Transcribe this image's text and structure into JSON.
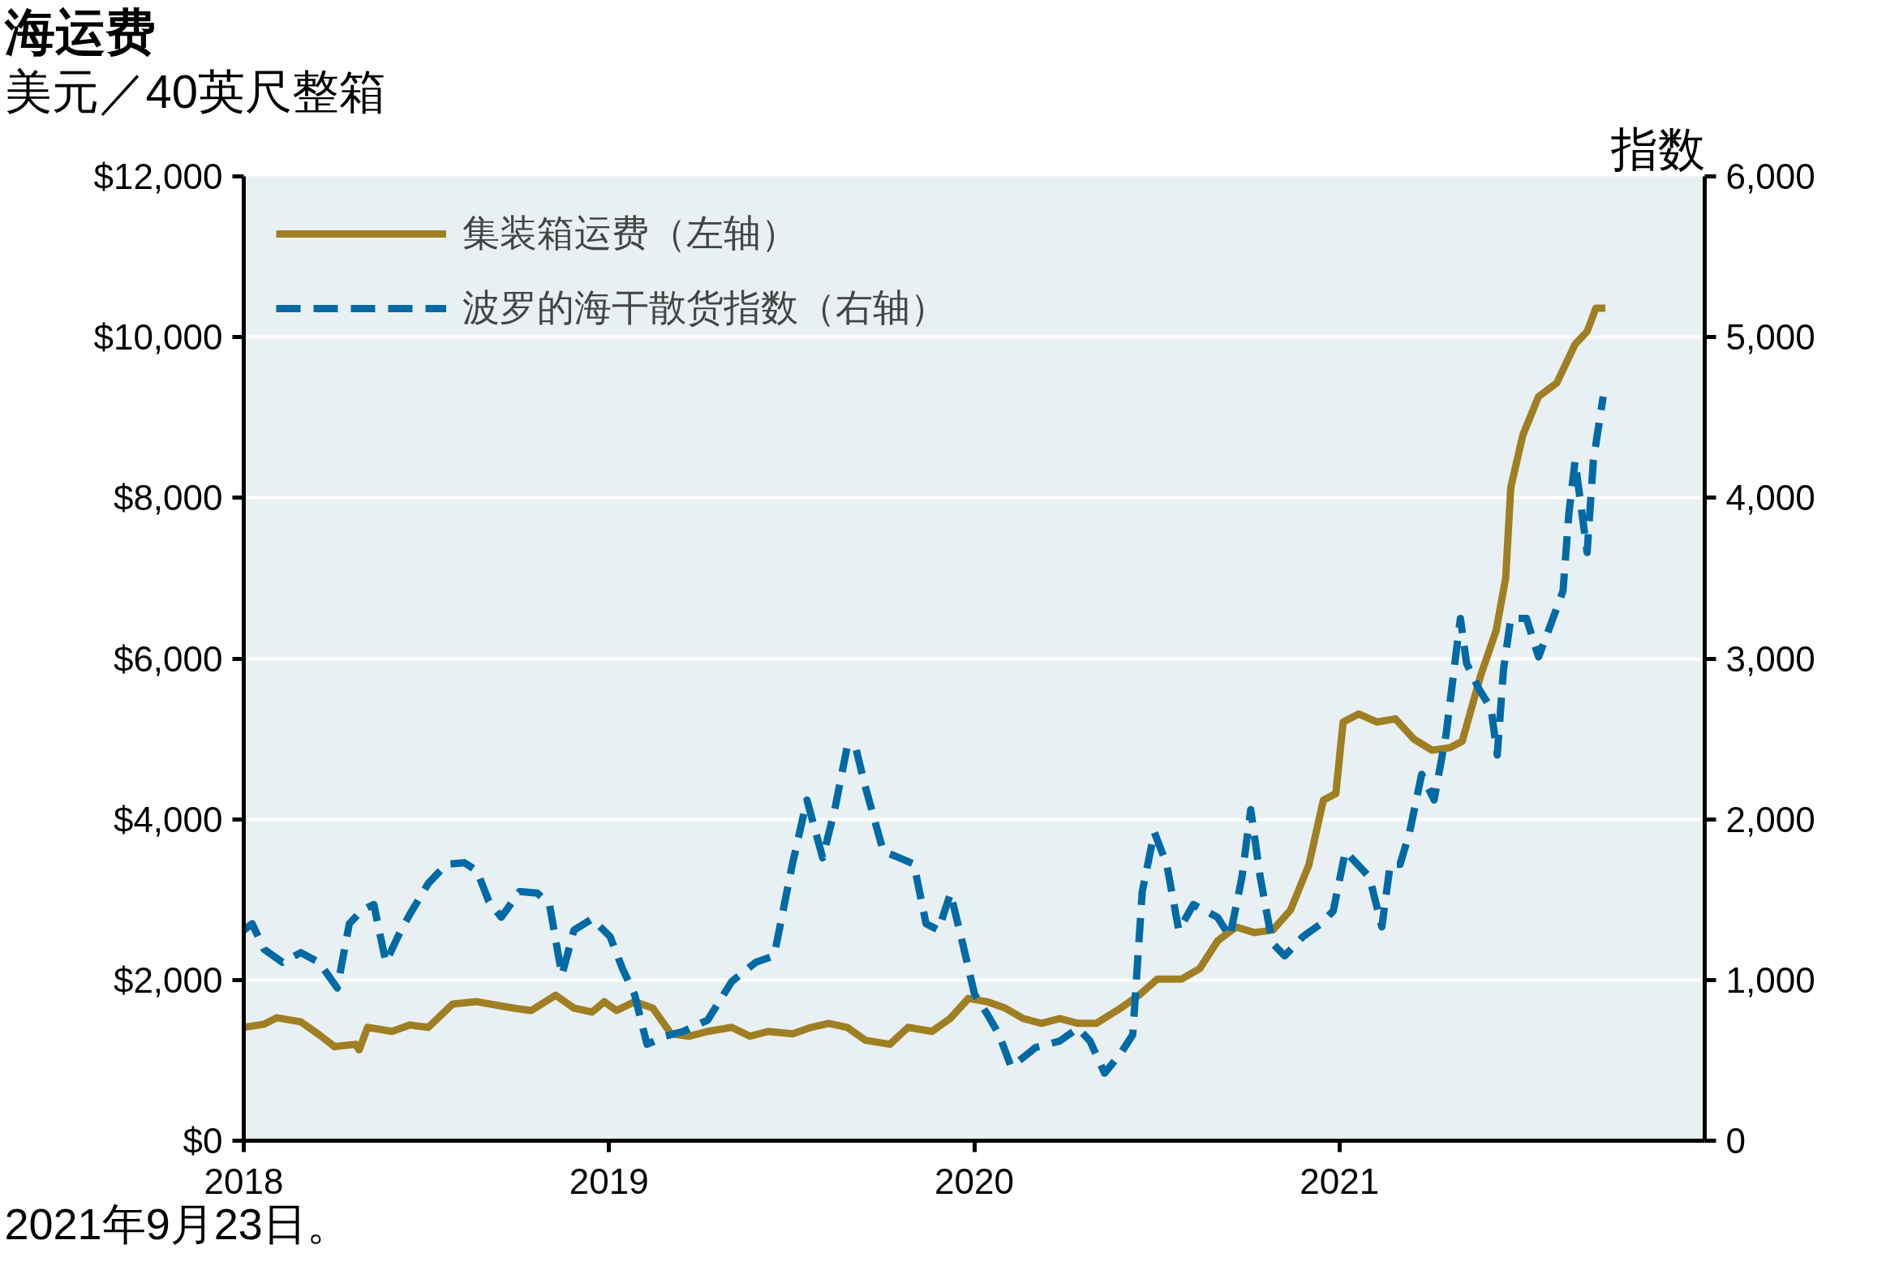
{
  "chart_data": {
    "type": "line",
    "title": "海运费",
    "ylabel": "美元／40英尺整箱",
    "y2label": "指数",
    "annotations": [
      "2021年9月23日。"
    ],
    "xlim": [
      2018,
      2022
    ],
    "xticks": [
      2018,
      2019,
      2020,
      2021
    ],
    "ylim": [
      0,
      12000
    ],
    "yticks": [
      {
        "value": 0,
        "label": "$0"
      },
      {
        "value": 2000,
        "label": "$2,000"
      },
      {
        "value": 4000,
        "label": "$4,000"
      },
      {
        "value": 6000,
        "label": "$6,000"
      },
      {
        "value": 8000,
        "label": "$8,000"
      },
      {
        "value": 10000,
        "label": "$10,000"
      },
      {
        "value": 12000,
        "label": "$12,000"
      }
    ],
    "y2lim": [
      0,
      6000
    ],
    "y2ticks": [
      0,
      {
        "value": 1000,
        "label": "1,000"
      },
      {
        "value": 2000,
        "label": "2,000"
      },
      {
        "value": 3000,
        "label": "3,000"
      },
      {
        "value": 4000,
        "label": "4,000"
      },
      {
        "value": 5000,
        "label": "5,000"
      },
      {
        "value": 6000,
        "label": "6,000"
      }
    ],
    "grid": "y",
    "legend": "top left",
    "series": [
      {
        "name": "集装箱运费（左轴）",
        "color": "#a07f22",
        "line_style": "solid",
        "x": [
          2018.0,
          2018.056,
          2018.09,
          2018.156,
          2018.206,
          2018.249,
          2018.306,
          2018.316,
          2018.339,
          2018.406,
          2018.455,
          2018.505,
          2018.572,
          2018.638,
          2018.738,
          2018.787,
          2018.854,
          2018.904,
          2018.954,
          2018.987,
          2019.02,
          2019.07,
          2019.12,
          2019.17,
          2019.22,
          2019.27,
          2019.336,
          2019.386,
          2019.436,
          2019.503,
          2019.553,
          2019.602,
          2019.652,
          2019.702,
          2019.769,
          2019.819,
          2019.884,
          2019.934,
          2019.984,
          2020.035,
          2020.085,
          2020.134,
          2020.184,
          2020.234,
          2020.284,
          2020.334,
          2020.401,
          2020.451,
          2020.501,
          2020.567,
          2020.617,
          2020.667,
          2020.717,
          2020.767,
          2020.817,
          2020.866,
          2020.916,
          2020.956,
          2020.99,
          2021.01,
          2021.053,
          2021.103,
          2021.153,
          2021.203,
          2021.253,
          2021.302,
          2021.336,
          2021.386,
          2021.429,
          2021.455,
          2021.469,
          2021.502,
          2021.545,
          2021.595,
          2021.645,
          2021.678,
          2021.702,
          2021.728
        ],
        "values": [
          1410,
          1450,
          1530,
          1480,
          1320,
          1170,
          1200,
          1130,
          1410,
          1360,
          1440,
          1410,
          1700,
          1730,
          1650,
          1620,
          1810,
          1650,
          1600,
          1730,
          1620,
          1730,
          1650,
          1330,
          1300,
          1360,
          1410,
          1300,
          1360,
          1330,
          1410,
          1460,
          1410,
          1250,
          1200,
          1410,
          1360,
          1520,
          1770,
          1730,
          1650,
          1520,
          1460,
          1520,
          1460,
          1460,
          1650,
          1810,
          2010,
          2010,
          2140,
          2490,
          2660,
          2590,
          2620,
          2870,
          3430,
          4240,
          4320,
          5210,
          5310,
          5210,
          5250,
          5000,
          4860,
          4890,
          4970,
          5780,
          6350,
          7000,
          8130,
          8780,
          9260,
          9430,
          9910,
          10070,
          10360,
          10360
        ]
      },
      {
        "name": "波罗的海干散货指数（右轴）",
        "color": "#006aa6",
        "line_style": "dashed",
        "axis": "y2",
        "x": [
          2018.0,
          2018.023,
          2018.056,
          2018.106,
          2018.156,
          2018.206,
          2018.256,
          2018.289,
          2018.322,
          2018.356,
          2018.389,
          2018.422,
          2018.455,
          2018.505,
          2018.555,
          2018.604,
          2018.638,
          2018.671,
          2018.705,
          2018.755,
          2018.804,
          2018.837,
          2018.871,
          2018.904,
          2018.954,
          2019.003,
          2019.037,
          2019.07,
          2019.104,
          2019.154,
          2019.203,
          2019.27,
          2019.336,
          2019.402,
          2019.452,
          2019.502,
          2019.542,
          2019.585,
          2019.618,
          2019.652,
          2019.675,
          2019.702,
          2019.751,
          2019.785,
          2019.835,
          2019.868,
          2019.902,
          2019.935,
          2019.968,
          2020.001,
          2020.035,
          2020.068,
          2020.101,
          2020.135,
          2020.168,
          2020.234,
          2020.284,
          2020.317,
          2020.357,
          2020.4,
          2020.434,
          2020.46,
          2020.493,
          2020.527,
          2020.56,
          2020.6,
          2020.633,
          2020.666,
          2020.7,
          2020.733,
          2020.757,
          2020.783,
          2020.816,
          2020.85,
          2020.9,
          2020.949,
          2020.983,
          2021.016,
          2021.049,
          2021.082,
          2021.116,
          2021.139,
          2021.166,
          2021.192,
          2021.225,
          2021.259,
          2021.292,
          2021.331,
          2021.348,
          2021.382,
          2021.415,
          2021.432,
          2021.449,
          2021.469,
          2021.512,
          2021.545,
          2021.578,
          2021.612,
          2021.628,
          2021.645,
          2021.678,
          2021.695,
          2021.722
        ],
        "values": [
          1310,
          1350,
          1190,
          1110,
          1170,
          1110,
          950,
          1350,
          1430,
          1470,
          1110,
          1270,
          1410,
          1600,
          1720,
          1730,
          1680,
          1490,
          1390,
          1550,
          1540,
          1470,
          1030,
          1310,
          1380,
          1270,
          1070,
          910,
          600,
          650,
          680,
          750,
          990,
          1110,
          1150,
          1720,
          2120,
          1760,
          2060,
          2450,
          2450,
          2200,
          1800,
          1770,
          1720,
          1350,
          1310,
          1540,
          1230,
          910,
          790,
          660,
          460,
          520,
          580,
          620,
          700,
          620,
          420,
          540,
          660,
          1550,
          1920,
          1720,
          1310,
          1470,
          1430,
          1390,
          1270,
          1640,
          2060,
          1640,
          1230,
          1150,
          1270,
          1350,
          1430,
          1800,
          1720,
          1640,
          1330,
          1720,
          1720,
          1920,
          2280,
          2120,
          2530,
          3250,
          2970,
          2810,
          2690,
          2400,
          2930,
          3250,
          3250,
          3010,
          3210,
          3420,
          3900,
          4230,
          3660,
          4230,
          4630
        ]
      }
    ]
  }
}
